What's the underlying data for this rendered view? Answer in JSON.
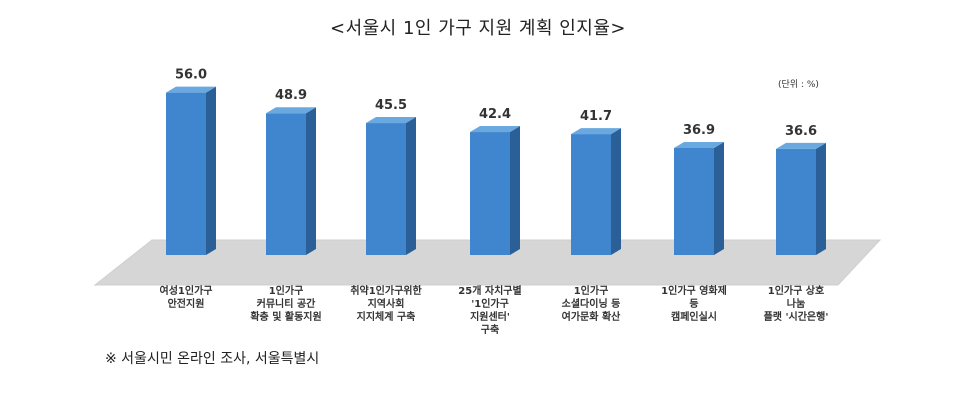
{
  "title": "<서울시 1인 가구 지원 계획 인지율>",
  "unit": "(단위 : %)",
  "source": "※ 서울시민 온라인 조사, 서울특별시",
  "colors": {
    "bar_front": "#3f86cf",
    "bar_side": "#2a5f97",
    "bar_top": "#6aa8e0",
    "floor": "#d6d6d6"
  },
  "chart_data": {
    "type": "bar",
    "categories": [
      [
        "여성1인가구",
        "안전지원"
      ],
      [
        "1인가구",
        "커뮤니티 공간",
        "확충 및 활동지원"
      ],
      [
        "취약1인가구위한",
        "지역사회",
        "지지체계 구축"
      ],
      [
        "25개 자치구별",
        "'1인가구",
        "지원센터'",
        "구축"
      ],
      [
        "1인가구",
        "소셜다이닝 등",
        "여가문화 확산"
      ],
      [
        "1인가구 영화제",
        "등",
        "캠페인실시"
      ],
      [
        "1인가구 상호",
        "나눔",
        "플랫 '시간은행'"
      ]
    ],
    "values": [
      56.0,
      48.9,
      45.5,
      42.4,
      41.7,
      36.9,
      36.6
    ],
    "value_labels": [
      "56.0",
      "48.9",
      "45.5",
      "42.4",
      "41.7",
      "36.9",
      "36.6"
    ],
    "ylim": [
      0,
      60
    ],
    "grid": false,
    "style": "3d-bar"
  }
}
